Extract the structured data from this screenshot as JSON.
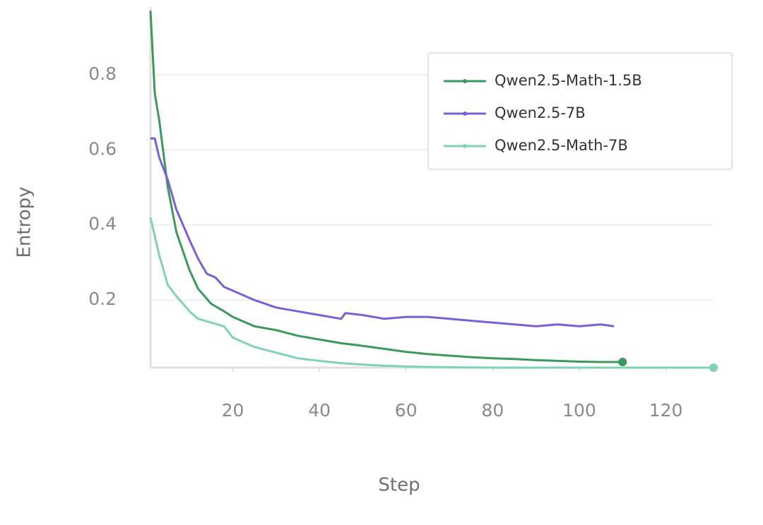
{
  "chart_data": {
    "type": "line",
    "x_label": "Step",
    "y_label": "Entropy",
    "xlim": [
      1,
      131
    ],
    "ylim": [
      0.02,
      0.98
    ],
    "xticks": [
      20,
      40,
      60,
      80,
      100,
      120
    ],
    "yticks": [
      0.2,
      0.4,
      0.6,
      0.8
    ],
    "grid": true,
    "legend": "upper right",
    "series": [
      {
        "name": "Qwen2.5-Math-1.5B",
        "color": "#3a9a5b",
        "end_marker": true,
        "x": [
          1,
          2,
          3,
          5,
          7,
          10,
          12,
          15,
          18,
          20,
          25,
          30,
          35,
          40,
          45,
          50,
          55,
          60,
          65,
          70,
          75,
          80,
          85,
          90,
          95,
          100,
          105,
          110
        ],
        "values": [
          0.97,
          0.75,
          0.68,
          0.5,
          0.38,
          0.28,
          0.23,
          0.19,
          0.17,
          0.155,
          0.13,
          0.12,
          0.105,
          0.095,
          0.085,
          0.078,
          0.07,
          0.062,
          0.056,
          0.052,
          0.048,
          0.045,
          0.043,
          0.04,
          0.038,
          0.036,
          0.035,
          0.035
        ]
      },
      {
        "name": "Qwen2.5-7B",
        "color": "#7a5fd6",
        "end_marker": false,
        "x": [
          1,
          2,
          3,
          5,
          7,
          10,
          12,
          14,
          16,
          18,
          20,
          25,
          30,
          35,
          40,
          45,
          46,
          50,
          55,
          60,
          65,
          70,
          75,
          80,
          85,
          90,
          95,
          100,
          105,
          108
        ],
        "values": [
          0.63,
          0.63,
          0.58,
          0.52,
          0.44,
          0.36,
          0.31,
          0.27,
          0.26,
          0.235,
          0.225,
          0.2,
          0.18,
          0.17,
          0.16,
          0.15,
          0.165,
          0.16,
          0.15,
          0.155,
          0.155,
          0.15,
          0.145,
          0.14,
          0.135,
          0.13,
          0.135,
          0.13,
          0.135,
          0.13
        ]
      },
      {
        "name": "Qwen2.5-Math-7B",
        "color": "#7fd3b4",
        "end_marker": true,
        "x": [
          1,
          2,
          3,
          5,
          7,
          10,
          12,
          15,
          18,
          20,
          25,
          30,
          35,
          40,
          45,
          50,
          55,
          60,
          70,
          80,
          90,
          100,
          110,
          120,
          131
        ],
        "values": [
          0.42,
          0.37,
          0.32,
          0.24,
          0.21,
          0.17,
          0.15,
          0.14,
          0.13,
          0.1,
          0.075,
          0.06,
          0.045,
          0.038,
          0.032,
          0.028,
          0.025,
          0.023,
          0.021,
          0.02,
          0.02,
          0.02,
          0.02,
          0.02,
          0.02
        ]
      }
    ]
  }
}
